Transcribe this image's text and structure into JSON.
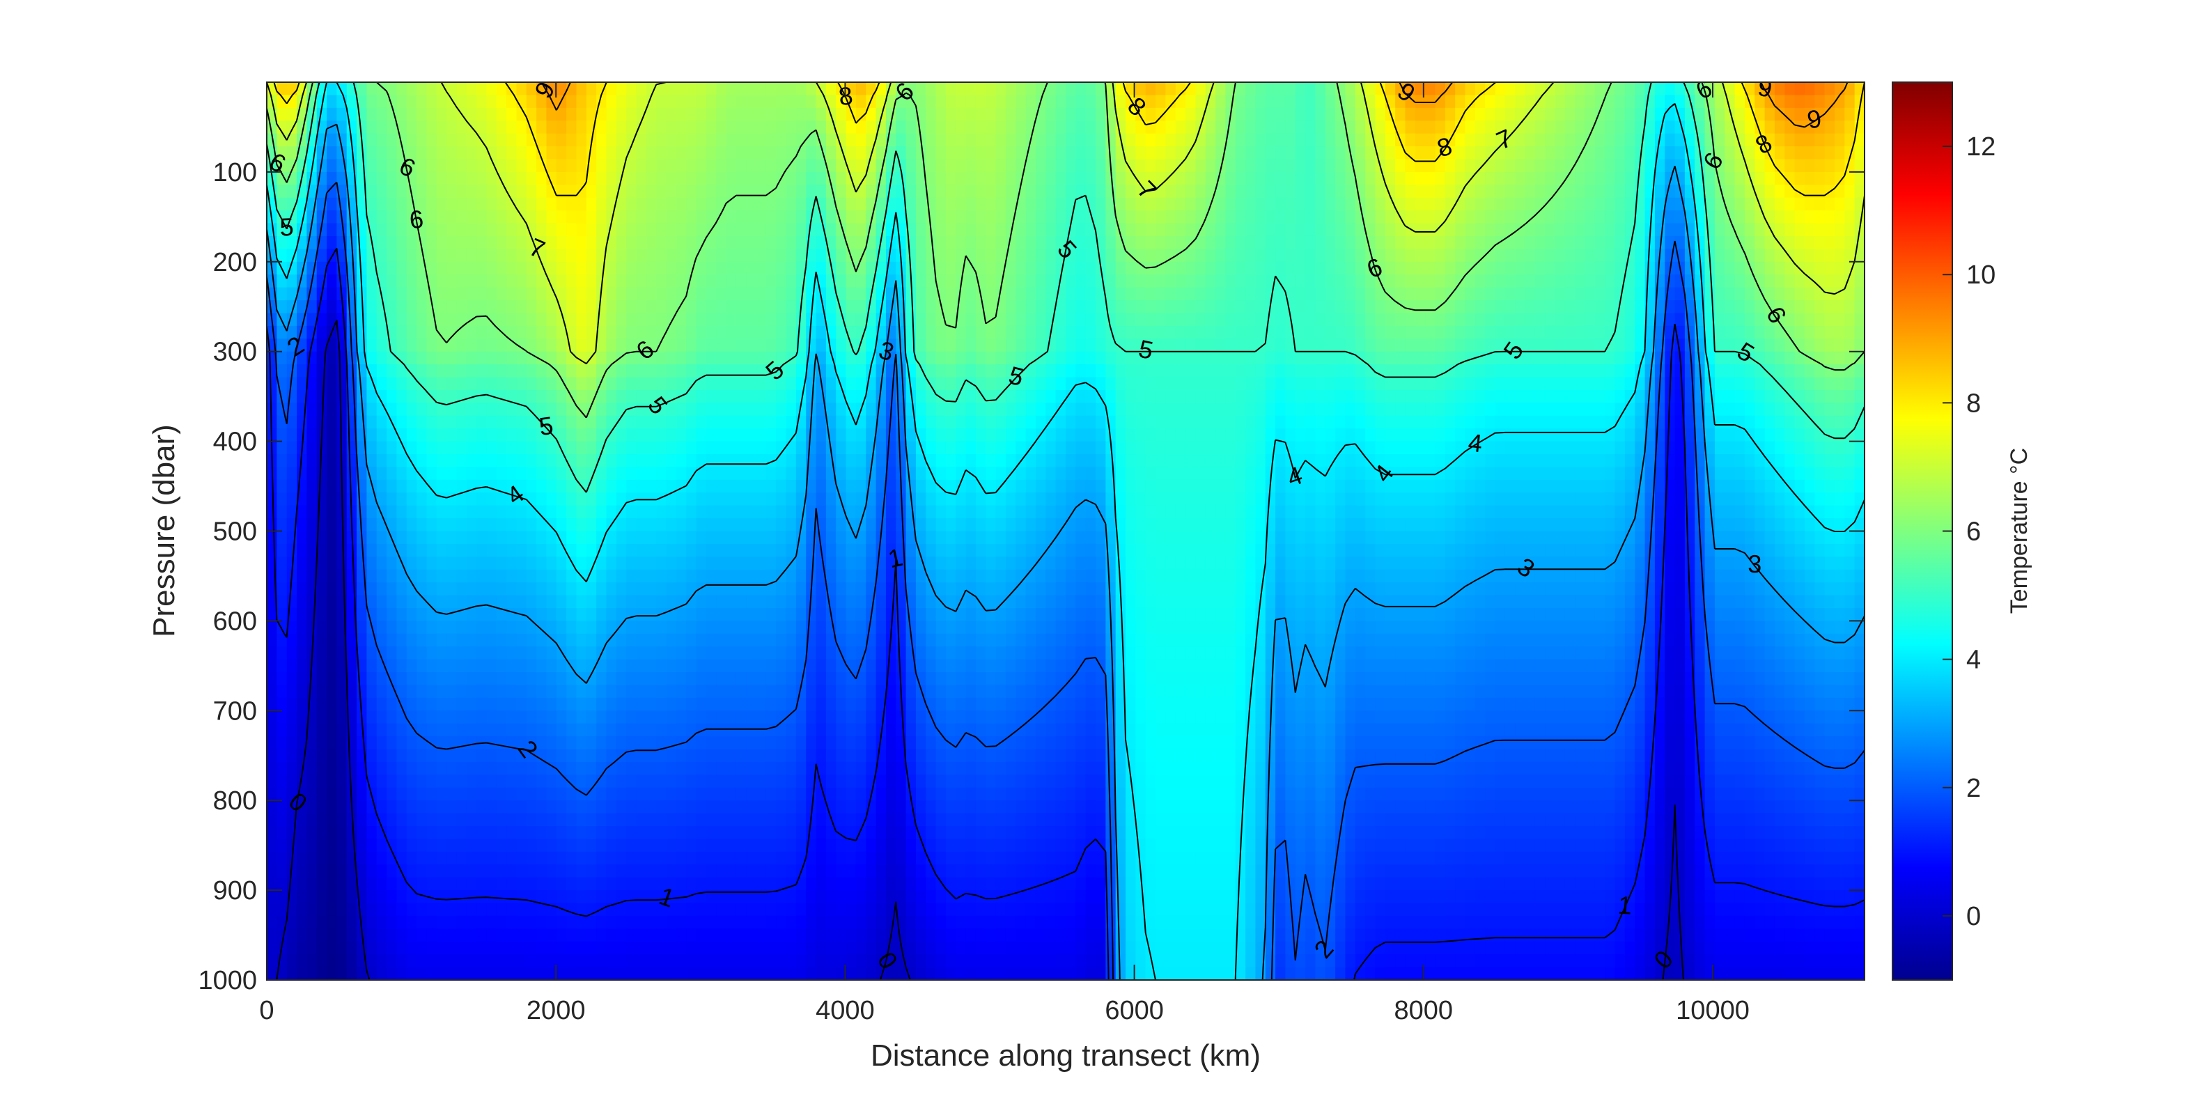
{
  "chart_data": {
    "type": "heatmap",
    "title": "",
    "xlabel": "Distance along transect (km)",
    "ylabel": "Pressure (dbar)",
    "xlim": [
      0,
      11050
    ],
    "ylim": [
      0,
      1000
    ],
    "y_reversed": true,
    "xticks": [
      0,
      2000,
      4000,
      6000,
      8000,
      10000
    ],
    "yticks": [
      100,
      200,
      300,
      400,
      500,
      600,
      700,
      800,
      900,
      1000
    ],
    "colorbar": {
      "label": "Temperature °C",
      "range": [
        -1,
        13
      ],
      "ticks": [
        0,
        2,
        4,
        6,
        8,
        10,
        12
      ],
      "colormap": "jet"
    },
    "contour_levels": [
      0,
      1,
      2,
      3,
      4,
      5,
      6,
      7,
      8,
      9
    ],
    "grid": false,
    "distance_km": [
      0,
      100,
      200,
      300,
      400,
      500,
      600,
      700,
      800,
      1000,
      1200,
      1500,
      1800,
      2000,
      2200,
      2350,
      2500,
      2700,
      2900,
      3000,
      3200,
      3500,
      3700,
      3800,
      3950,
      4100,
      4250,
      4350,
      4450,
      4600,
      4750,
      4850,
      5000,
      5200,
      5400,
      5600,
      5700,
      5800,
      5900,
      6100,
      6400,
      6700,
      6900,
      7000,
      7100,
      7200,
      7300,
      7500,
      7700,
      7900,
      8100,
      8300,
      8500,
      8700,
      8900,
      9100,
      9300,
      9500,
      9650,
      9750,
      9850,
      10000,
      10200,
      10400,
      10600,
      10800,
      10950,
      11050
    ],
    "surface_temperature_c": [
      7,
      9,
      8.5,
      6.5,
      4,
      4,
      5,
      6,
      6,
      6.5,
      7,
      7.5,
      8.5,
      9.5,
      8.5,
      8,
      7.5,
      7,
      7,
      7,
      6.5,
      6.5,
      6.5,
      7,
      8,
      9,
      8,
      6.5,
      6,
      6.5,
      7,
      7,
      7,
      6.5,
      6,
      5.5,
      5.5,
      6,
      8,
      9,
      8,
      6,
      5.5,
      5.5,
      5.5,
      5,
      5.5,
      6.5,
      8,
      9.5,
      9.5,
      8.5,
      8,
      7.5,
      7,
      6.5,
      6,
      5.5,
      4.5,
      4.5,
      5.5,
      6.5,
      8,
      9.5,
      10,
      9.5,
      9,
      8
    ],
    "mid_depth_300dbar_c": [
      0.5,
      3,
      2,
      1,
      0,
      -0.5,
      2.5,
      4.5,
      4.8,
      5.5,
      6,
      5.8,
      6,
      6.5,
      7.5,
      6.5,
      6,
      6,
      5.8,
      5.5,
      5.5,
      5.5,
      5,
      3,
      4.5,
      5.2,
      3.5,
      2,
      5,
      5.8,
      6,
      5.5,
      6,
      5.5,
      5,
      4.5,
      4.5,
      4.8,
      5,
      5,
      5,
      5,
      5,
      4.8,
      5,
      5,
      5,
      5,
      5.5,
      5.5,
      5.5,
      5.2,
      5,
      5,
      5,
      5,
      5,
      4.5,
      2,
      0.5,
      2,
      5,
      5,
      5.5,
      6,
      6.5,
      6.5,
      6
    ],
    "deep_1000dbar_c": [
      0,
      0,
      -0.5,
      -0.5,
      -0.8,
      -0.8,
      -0.5,
      0,
      0.2,
      0.5,
      0.5,
      0.5,
      0.5,
      0.5,
      0.5,
      0.5,
      0.5,
      0.5,
      0.5,
      0.5,
      0.5,
      0.5,
      0.5,
      0.3,
      0.3,
      0.2,
      0,
      -0.2,
      0,
      0.3,
      0.5,
      0.5,
      0.5,
      0.5,
      0.5,
      0.5,
      0.3,
      0.3,
      3.5,
      4,
      4,
      4,
      3,
      1,
      2,
      1.5,
      2,
      1,
      0.8,
      0.8,
      0.8,
      0.8,
      0.8,
      0.8,
      0.8,
      0.8,
      0.8,
      0.5,
      0,
      -0.2,
      0.2,
      0.5,
      0.5,
      0.5,
      0.5,
      0.5,
      0.5,
      0.5
    ],
    "contour_label_texts": [
      "9",
      "8",
      "7",
      "6",
      "5",
      "4",
      "3",
      "2",
      "1",
      "0",
      "9",
      "8",
      "7",
      "6",
      "6",
      "5",
      "4",
      "3",
      "2",
      "1",
      "0",
      "6",
      "6",
      "5",
      "5",
      "5",
      "5",
      "5",
      "8",
      "9",
      "8",
      "7",
      "6",
      "9",
      "6",
      "6",
      "5",
      "4",
      "3",
      "2",
      "1",
      "0",
      "4",
      "6",
      "5"
    ]
  }
}
